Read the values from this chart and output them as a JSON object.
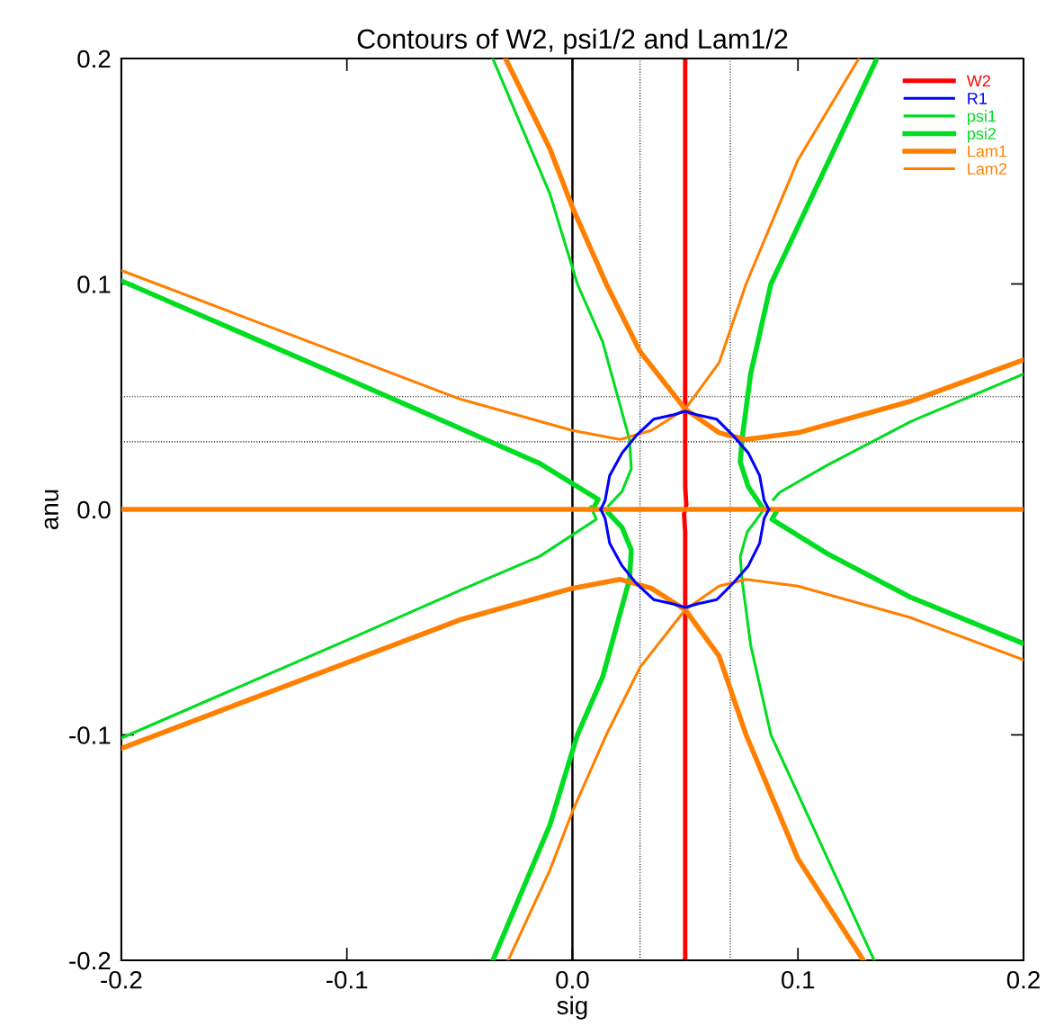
{
  "chart_data": {
    "type": "line",
    "title": "Contours of W2, psi1/2 and Lam1/2",
    "xlabel": "sig",
    "ylabel": "anu",
    "xlim": [
      -0.2,
      0.2
    ],
    "ylim": [
      -0.2,
      0.2
    ],
    "xticks": [
      -0.2,
      -0.1,
      {
        "value": 0,
        "label": "0.0"
      },
      0.1,
      0.2
    ],
    "yticks": [
      -0.2,
      -0.1,
      {
        "value": 0,
        "label": "0.0"
      },
      0.1,
      0.2
    ],
    "grid": false,
    "legend": "top right",
    "marker": "none",
    "line_style": "solid",
    "ref_lines": [
      {
        "axis": "x",
        "value": 0,
        "color": "#000000",
        "line_style": "solid"
      },
      {
        "axis": "x",
        "value": 0.03,
        "color": "#000000",
        "line_style": "dotted"
      },
      {
        "axis": "x",
        "value": 0.07,
        "color": "#000000",
        "line_style": "dotted"
      },
      {
        "axis": "y",
        "value": 0.05,
        "color": "#000000",
        "line_style": "dotted"
      },
      {
        "axis": "y",
        "value": 0.03,
        "color": "#000000",
        "line_style": "dotted"
      }
    ],
    "series": [
      {
        "name": "W2",
        "color": "#ff0000",
        "x": [
          0.05,
          0.05,
          0.0505,
          0.0495,
          0.05,
          0.05
        ],
        "values": [
          0.2,
          0.01,
          0.002,
          -0.002,
          -0.01,
          -0.2
        ]
      },
      {
        "name": "R1",
        "color": "#0000ff",
        "x": [
          0.0126,
          0.0145,
          0.0165,
          0.022,
          0.0285,
          0.036,
          0.045,
          0.05,
          0.055,
          0.064,
          0.071,
          0.078,
          0.083,
          0.085,
          0.0871,
          null,
          0.0871,
          0.085,
          0.083,
          0.078,
          0.071,
          0.064,
          0.055,
          0.05,
          0.045,
          0.036,
          0.0285,
          0.022,
          0.0165,
          0.0145,
          0.0126
        ],
        "values": [
          0,
          0.004,
          0.015,
          0.025,
          0.033,
          0.04,
          0.042,
          0.0435,
          0.042,
          0.04,
          0.033,
          0.025,
          0.015,
          0.004,
          0,
          null,
          0,
          -0.004,
          -0.015,
          -0.025,
          -0.033,
          -0.04,
          -0.042,
          -0.0435,
          -0.042,
          -0.04,
          -0.033,
          -0.025,
          -0.015,
          -0.004,
          0
        ]
      },
      {
        "name": "psi1",
        "color": "#00dd22",
        "x": [
          -0.0353,
          -0.01,
          0.0022,
          0.0134,
          0.0253,
          0.0261,
          0.022,
          0.016,
          null,
          0.0082,
          0.0106,
          -0.0145,
          -0.05,
          -0.1,
          -0.2,
          null,
          0.0891,
          0.0919,
          0.113,
          0.15,
          0.2,
          null,
          0.084,
          0.0775,
          0.0744,
          0.0752,
          0.079,
          0.088,
          0.1338
        ],
        "values": [
          0.2,
          0.14,
          0.1,
          0.0743,
          0.031,
          0.018,
          0.008,
          0.0016,
          null,
          0.0012,
          -0.0044,
          -0.0208,
          -0.036,
          -0.058,
          -0.1014,
          null,
          0.0044,
          0.0076,
          0.0196,
          0.039,
          0.06,
          null,
          -0.0012,
          -0.01,
          -0.021,
          -0.031,
          -0.06,
          -0.1,
          -0.2
        ]
      },
      {
        "name": "psi2",
        "color": "#00dd22",
        "x": [
          -0.0353,
          -0.01,
          0.0022,
          0.0134,
          0.0253,
          0.0261,
          0.022,
          0.016,
          null,
          -0.2,
          -0.1,
          -0.05,
          -0.0145,
          0.0114,
          0.009,
          null,
          0.0905,
          0.0885,
          0.113,
          0.15,
          0.2,
          null,
          0.084,
          0.078,
          0.0744,
          0.0752,
          0.079,
          0.088,
          0.135
        ],
        "values": [
          -0.2,
          -0.14,
          -0.1,
          -0.0743,
          -0.031,
          -0.018,
          -0.008,
          -0.0016,
          null,
          0.1014,
          0.058,
          0.036,
          0.0204,
          0.0044,
          0,
          null,
          -0.0008,
          -0.0044,
          -0.0196,
          -0.039,
          -0.0595,
          null,
          0.0012,
          0.01,
          0.021,
          0.031,
          0.06,
          0.1,
          0.2
        ]
      },
      {
        "name": "Lam1",
        "color": "#ff8000",
        "x": [
          -0.2,
          0.2,
          null,
          -0.0297,
          -0.01,
          0,
          0.015,
          0.03,
          0.05,
          0.065,
          0.077,
          0.1,
          0.15,
          0.2,
          null,
          -0.2,
          -0.15,
          -0.1,
          -0.05,
          0,
          0.021,
          0.035,
          0.05,
          0.065,
          0.077,
          0.1,
          0.129
        ],
        "values": [
          0,
          0,
          null,
          0.2,
          0.16,
          0.134,
          0.1,
          0.07,
          0.0445,
          0.034,
          0.031,
          0.034,
          0.048,
          0.0663,
          null,
          -0.106,
          -0.087,
          -0.068,
          -0.049,
          -0.035,
          -0.031,
          -0.035,
          -0.0445,
          -0.065,
          -0.1,
          -0.155,
          -0.2
        ]
      },
      {
        "name": "Lam2",
        "color": "#ff8000",
        "x": [
          -0.2,
          -0.15,
          -0.1,
          -0.05,
          0,
          0.021,
          0.035,
          0.05,
          0.065,
          0.077,
          0.1,
          0.127,
          null,
          -0.0285,
          -0.01,
          0,
          0.015,
          0.03,
          0.05,
          0.065,
          0.077,
          0.1,
          0.15,
          0.2
        ],
        "values": [
          0.106,
          0.087,
          0.068,
          0.049,
          0.035,
          0.031,
          0.035,
          0.0445,
          0.065,
          0.1,
          0.155,
          0.2,
          null,
          -0.2,
          -0.16,
          -0.134,
          -0.1,
          -0.07,
          -0.0445,
          -0.034,
          -0.031,
          -0.034,
          -0.048,
          -0.0667
        ]
      }
    ]
  }
}
